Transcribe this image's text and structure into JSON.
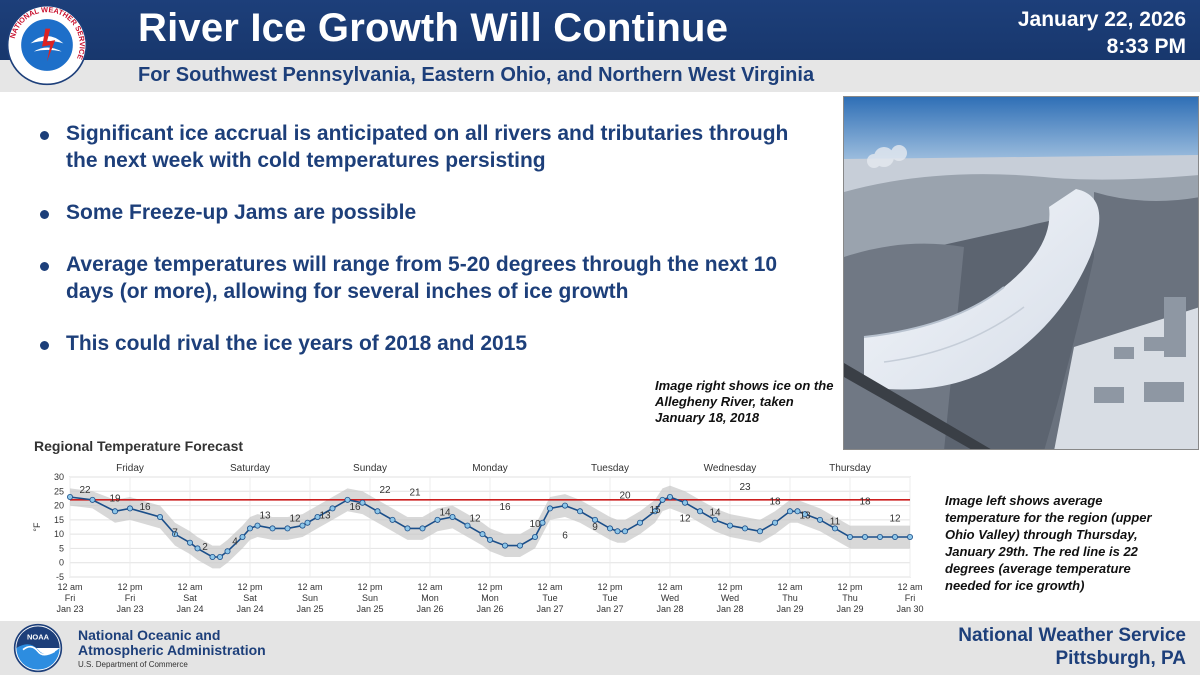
{
  "header": {
    "title": "River Ice Growth Will Continue",
    "subtitle": "For Southwest Pennsylvania, Eastern Ohio, and Northern West Virginia",
    "date": "January 22, 2026",
    "time": "8:33 PM",
    "logo_ring_text": "NATIONAL WEATHER SERVICE"
  },
  "bullets": [
    "Significant ice accrual is anticipated on all rivers and tributaries through the next week with cold temperatures persisting",
    "Some Freeze-up Jams are possible",
    "Average temperatures will range from 5-20 degrees through the next 10 days (or more), allowing for several inches of ice growth",
    "This could rival the ice years of 2018 and 2015"
  ],
  "captions": {
    "right": "Image right shows ice on the Allegheny River, taken January 18, 2018",
    "left": "Image left shows average temperature for the region (upper Ohio Valley) through Thursday, January 29th. The red line is 22 degrees (average temperature needed for ice growth)"
  },
  "chart_data": {
    "type": "line",
    "title": "Regional Temperature Forecast",
    "ylabel": "°F",
    "ylim": [
      -5,
      30
    ],
    "yticks": [
      30,
      25,
      20,
      15,
      10,
      5,
      0,
      -5
    ],
    "x_hours": [
      0,
      18,
      36,
      48,
      72,
      84,
      96,
      102,
      114,
      120,
      126,
      138,
      144,
      150,
      162,
      174,
      186,
      190,
      198,
      210,
      222,
      234,
      246,
      258,
      270,
      282,
      294,
      306,
      318,
      330,
      336,
      348,
      360,
      372,
      378,
      384,
      396,
      408,
      420,
      432,
      438,
      444,
      456,
      468,
      474,
      480,
      492,
      504,
      516,
      528,
      540,
      552,
      564,
      576,
      582,
      588,
      600,
      612,
      624,
      636,
      648,
      660,
      672
    ],
    "temps": [
      23,
      22,
      18,
      19,
      16,
      10,
      7,
      5,
      2,
      2,
      4,
      9,
      12,
      13,
      12,
      12,
      13,
      14,
      16,
      19,
      22,
      21,
      18,
      15,
      12,
      12,
      15,
      16,
      13,
      10,
      8,
      6,
      6,
      9,
      14,
      19,
      20,
      18,
      15,
      12,
      11,
      11,
      14,
      18,
      22,
      23,
      21,
      18,
      15,
      13,
      12,
      11,
      14,
      18,
      18,
      17,
      15,
      12,
      9,
      9,
      9,
      9,
      9
    ],
    "band_upper_offset": [
      3,
      3,
      4,
      4,
      4,
      4,
      4,
      4,
      4,
      4,
      4,
      4,
      4,
      4,
      4,
      4,
      4,
      4,
      4,
      4,
      4,
      4,
      4,
      4,
      4,
      4,
      4,
      4,
      4,
      4,
      4,
      4,
      4,
      4,
      4,
      4,
      4,
      4,
      4,
      4,
      4,
      4,
      4,
      4,
      4,
      4,
      4,
      4,
      4,
      4,
      4,
      4,
      4,
      4,
      4,
      4,
      4,
      4,
      4,
      4,
      4,
      4,
      4
    ],
    "point_labels": [
      {
        "h": 6,
        "v": 22
      },
      {
        "h": 18,
        "v": 19
      },
      {
        "h": 30,
        "v": 16
      },
      {
        "h": 42,
        "v": 7
      },
      {
        "h": 54,
        "v": 2
      },
      {
        "h": 66,
        "v": 4
      },
      {
        "h": 78,
        "v": 13
      },
      {
        "h": 90,
        "v": 12
      },
      {
        "h": 102,
        "v": 13
      },
      {
        "h": 114,
        "v": 16
      },
      {
        "h": 126,
        "v": 22
      },
      {
        "h": 138,
        "v": 21
      },
      {
        "h": 150,
        "v": 14
      },
      {
        "h": 162,
        "v": 12
      },
      {
        "h": 174,
        "v": 16
      },
      {
        "h": 186,
        "v": 10
      },
      {
        "h": 198,
        "v": 6
      },
      {
        "h": 210,
        "v": 9
      },
      {
        "h": 222,
        "v": 20
      },
      {
        "h": 234,
        "v": 15
      },
      {
        "h": 246,
        "v": 12
      },
      {
        "h": 258,
        "v": 14
      },
      {
        "h": 270,
        "v": 23
      },
      {
        "h": 282,
        "v": 18
      },
      {
        "h": 294,
        "v": 13
      },
      {
        "h": 306,
        "v": 11
      },
      {
        "h": 318,
        "v": 18
      },
      {
        "h": 330,
        "v": 12
      }
    ],
    "threshold": 22,
    "day_labels": [
      {
        "h": 12,
        "text": "Friday"
      },
      {
        "h": 36,
        "text": "Saturday"
      },
      {
        "h": 60,
        "text": "Sunday"
      },
      {
        "h": 84,
        "text": "Monday"
      },
      {
        "h": 108,
        "text": "Tuesday"
      },
      {
        "h": 132,
        "text": "Wednesday"
      },
      {
        "h": 156,
        "text": "Thursday"
      }
    ],
    "x_tick_labels": [
      [
        "12 am",
        "Fri",
        "Jan 23"
      ],
      [
        "12 pm",
        "Fri",
        "Jan 23"
      ],
      [
        "12 am",
        "Sat",
        "Jan 24"
      ],
      [
        "12 pm",
        "Sat",
        "Jan 24"
      ],
      [
        "12 am",
        "Sun",
        "Jan 25"
      ],
      [
        "12 pm",
        "Sun",
        "Jan 25"
      ],
      [
        "12 am",
        "Mon",
        "Jan 26"
      ],
      [
        "12 pm",
        "Mon",
        "Jan 26"
      ],
      [
        "12 am",
        "Tue",
        "Jan 27"
      ],
      [
        "12 pm",
        "Tue",
        "Jan 27"
      ],
      [
        "12 am",
        "Wed",
        "Jan 28"
      ],
      [
        "12 pm",
        "Wed",
        "Jan 28"
      ],
      [
        "12 am",
        "Thu",
        "Jan 29"
      ],
      [
        "12 pm",
        "Thu",
        "Jan 29"
      ],
      [
        "12 am",
        "Fri",
        "Jan 30"
      ]
    ],
    "colors": {
      "line": "#1b4f8a",
      "point": "#8ec6e8",
      "band": "#c8c8c8",
      "threshold": "#cc1f1f"
    }
  },
  "footer": {
    "noaa_line1": "National Oceanic and",
    "noaa_line2": "Atmospheric Administration",
    "noaa_dept": "U.S. Department of Commerce",
    "office_line1": "National Weather Service",
    "office_line2": "Pittsburgh, PA",
    "noaa_logo_text": "NOAA"
  },
  "colors": {
    "brand_blue": "#1d3f7a",
    "subheader_gray": "#e6e6e6"
  }
}
